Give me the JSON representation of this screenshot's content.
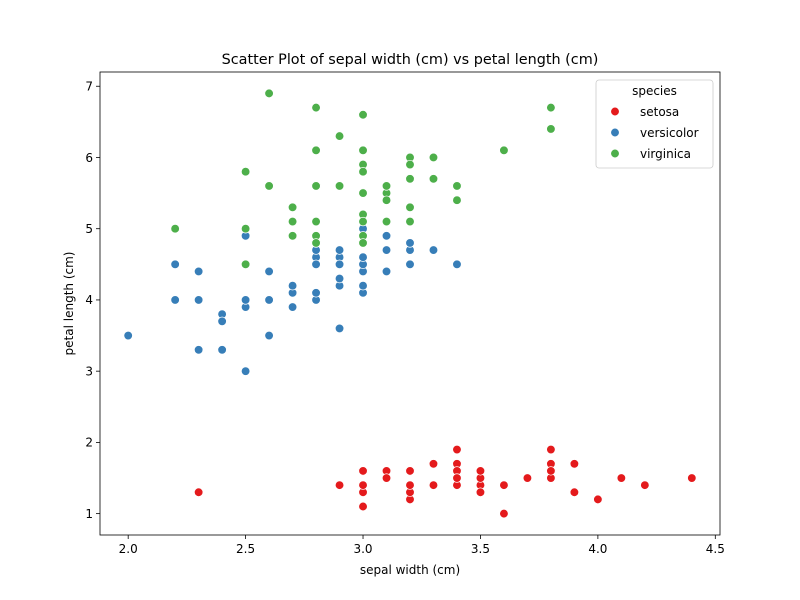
{
  "chart_data": {
    "type": "scatter",
    "title": "Scatter Plot of sepal width (cm) vs petal length (cm)",
    "xlabel": "sepal width (cm)",
    "ylabel": "petal length (cm)",
    "xlim": [
      1.88,
      4.52
    ],
    "ylim": [
      0.7,
      7.2
    ],
    "xticks": [
      2.0,
      2.5,
      3.0,
      3.5,
      4.0,
      4.5
    ],
    "xtick_labels": [
      "2.0",
      "2.5",
      "3.0",
      "3.5",
      "4.0",
      "4.5"
    ],
    "yticks": [
      1,
      2,
      3,
      4,
      5,
      6,
      7
    ],
    "ytick_labels": [
      "1",
      "2",
      "3",
      "4",
      "5",
      "6",
      "7"
    ],
    "grid": false,
    "legend": {
      "title": "species",
      "placement": "top-right"
    },
    "series": [
      {
        "name": "setosa",
        "color": "#e41a1c",
        "points": [
          [
            3.5,
            1.4
          ],
          [
            3.0,
            1.4
          ],
          [
            3.2,
            1.3
          ],
          [
            3.1,
            1.5
          ],
          [
            3.6,
            1.4
          ],
          [
            3.9,
            1.7
          ],
          [
            3.4,
            1.4
          ],
          [
            3.4,
            1.5
          ],
          [
            2.9,
            1.4
          ],
          [
            3.1,
            1.5
          ],
          [
            3.7,
            1.5
          ],
          [
            3.4,
            1.6
          ],
          [
            3.0,
            1.4
          ],
          [
            3.0,
            1.1
          ],
          [
            4.0,
            1.2
          ],
          [
            4.4,
            1.5
          ],
          [
            3.9,
            1.3
          ],
          [
            3.5,
            1.4
          ],
          [
            3.8,
            1.7
          ],
          [
            3.8,
            1.5
          ],
          [
            3.4,
            1.7
          ],
          [
            3.7,
            1.5
          ],
          [
            3.6,
            1.0
          ],
          [
            3.3,
            1.7
          ],
          [
            3.4,
            1.9
          ],
          [
            3.0,
            1.6
          ],
          [
            3.4,
            1.6
          ],
          [
            3.5,
            1.5
          ],
          [
            3.4,
            1.4
          ],
          [
            3.2,
            1.6
          ],
          [
            3.1,
            1.6
          ],
          [
            3.4,
            1.5
          ],
          [
            4.1,
            1.5
          ],
          [
            4.2,
            1.4
          ],
          [
            3.1,
            1.5
          ],
          [
            3.2,
            1.2
          ],
          [
            3.5,
            1.3
          ],
          [
            3.6,
            1.4
          ],
          [
            3.0,
            1.3
          ],
          [
            3.4,
            1.5
          ],
          [
            3.5,
            1.3
          ],
          [
            2.3,
            1.3
          ],
          [
            3.2,
            1.3
          ],
          [
            3.5,
            1.6
          ],
          [
            3.8,
            1.9
          ],
          [
            3.0,
            1.4
          ],
          [
            3.8,
            1.6
          ],
          [
            3.2,
            1.4
          ],
          [
            3.7,
            1.5
          ],
          [
            3.3,
            1.4
          ]
        ]
      },
      {
        "name": "versicolor",
        "color": "#377eb8",
        "points": [
          [
            3.2,
            4.7
          ],
          [
            3.2,
            4.5
          ],
          [
            3.1,
            4.9
          ],
          [
            2.3,
            4.0
          ],
          [
            2.8,
            4.6
          ],
          [
            2.8,
            4.5
          ],
          [
            3.3,
            4.7
          ],
          [
            2.4,
            3.3
          ],
          [
            2.9,
            4.6
          ],
          [
            2.7,
            3.9
          ],
          [
            2.0,
            3.5
          ],
          [
            3.0,
            4.2
          ],
          [
            2.2,
            4.0
          ],
          [
            2.9,
            4.7
          ],
          [
            2.9,
            3.6
          ],
          [
            3.1,
            4.4
          ],
          [
            3.0,
            4.5
          ],
          [
            2.7,
            4.1
          ],
          [
            2.2,
            4.5
          ],
          [
            2.5,
            3.9
          ],
          [
            3.2,
            4.8
          ],
          [
            2.8,
            4.0
          ],
          [
            2.5,
            4.9
          ],
          [
            2.8,
            4.7
          ],
          [
            2.9,
            4.3
          ],
          [
            3.0,
            4.4
          ],
          [
            2.8,
            4.8
          ],
          [
            3.0,
            5.0
          ],
          [
            2.9,
            4.5
          ],
          [
            2.6,
            3.5
          ],
          [
            2.4,
            3.8
          ],
          [
            2.4,
            3.7
          ],
          [
            2.7,
            3.9
          ],
          [
            2.7,
            5.1
          ],
          [
            3.0,
            4.5
          ],
          [
            3.4,
            4.5
          ],
          [
            3.1,
            4.7
          ],
          [
            2.3,
            4.4
          ],
          [
            3.0,
            4.1
          ],
          [
            2.5,
            4.0
          ],
          [
            2.6,
            4.4
          ],
          [
            3.0,
            4.6
          ],
          [
            2.6,
            4.0
          ],
          [
            2.3,
            3.3
          ],
          [
            2.7,
            4.2
          ],
          [
            3.0,
            4.2
          ],
          [
            2.9,
            4.2
          ],
          [
            2.9,
            4.3
          ],
          [
            2.5,
            3.0
          ],
          [
            2.8,
            4.1
          ]
        ]
      },
      {
        "name": "virginica",
        "color": "#4daf4a",
        "points": [
          [
            3.3,
            6.0
          ],
          [
            2.7,
            5.1
          ],
          [
            3.0,
            5.9
          ],
          [
            2.9,
            5.6
          ],
          [
            3.0,
            5.8
          ],
          [
            3.0,
            6.6
          ],
          [
            2.5,
            4.5
          ],
          [
            2.9,
            6.3
          ],
          [
            2.5,
            5.8
          ],
          [
            3.6,
            6.1
          ],
          [
            3.2,
            5.1
          ],
          [
            2.7,
            5.3
          ],
          [
            3.0,
            5.5
          ],
          [
            2.5,
            5.0
          ],
          [
            2.8,
            5.1
          ],
          [
            3.2,
            5.3
          ],
          [
            3.0,
            5.5
          ],
          [
            3.8,
            6.7
          ],
          [
            2.6,
            6.9
          ],
          [
            2.2,
            5.0
          ],
          [
            3.2,
            5.7
          ],
          [
            2.8,
            4.9
          ],
          [
            2.8,
            6.7
          ],
          [
            2.7,
            4.9
          ],
          [
            3.3,
            5.7
          ],
          [
            3.2,
            6.0
          ],
          [
            2.8,
            4.8
          ],
          [
            3.0,
            4.9
          ],
          [
            2.8,
            5.6
          ],
          [
            3.0,
            5.8
          ],
          [
            2.8,
            6.1
          ],
          [
            3.8,
            6.4
          ],
          [
            2.8,
            5.6
          ],
          [
            2.8,
            5.1
          ],
          [
            2.6,
            5.6
          ],
          [
            3.0,
            6.1
          ],
          [
            3.4,
            5.6
          ],
          [
            3.1,
            5.5
          ],
          [
            3.0,
            4.8
          ],
          [
            3.1,
            5.4
          ],
          [
            3.1,
            5.6
          ],
          [
            3.1,
            5.1
          ],
          [
            2.7,
            5.1
          ],
          [
            3.2,
            5.9
          ],
          [
            3.3,
            5.7
          ],
          [
            3.0,
            5.2
          ],
          [
            2.5,
            5.0
          ],
          [
            3.0,
            5.2
          ],
          [
            3.4,
            5.4
          ],
          [
            3.0,
            5.1
          ]
        ]
      }
    ]
  }
}
